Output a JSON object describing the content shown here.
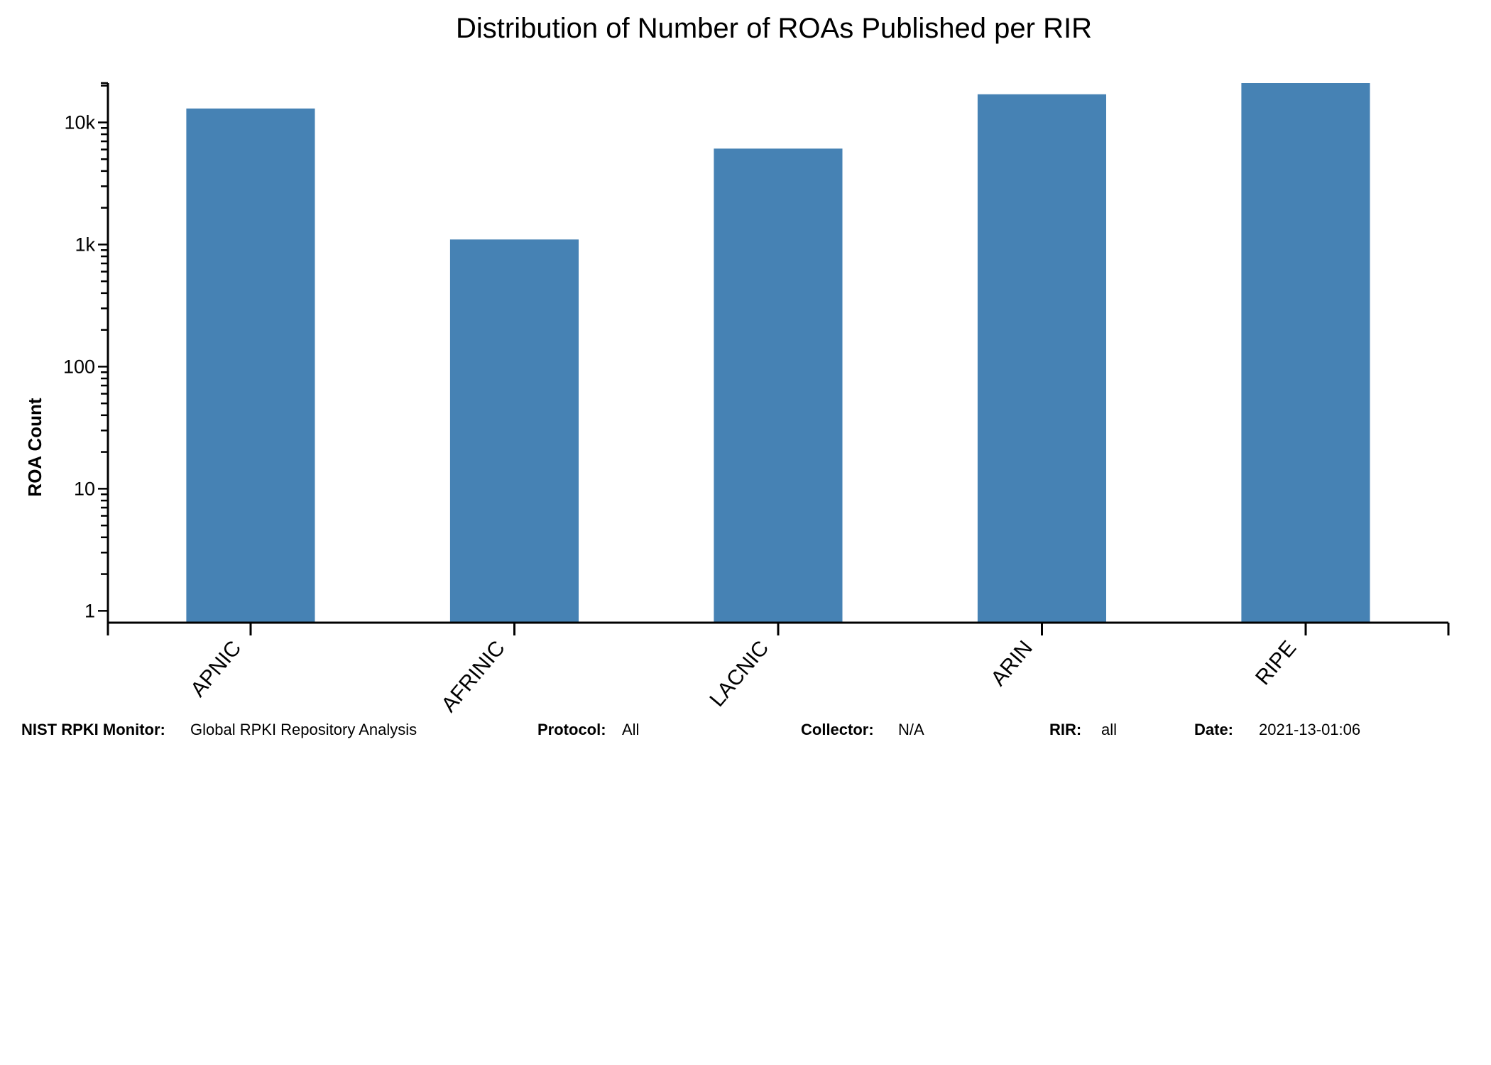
{
  "chart_data": {
    "type": "bar",
    "title": "Distribution of Number of ROAs Published per RIR",
    "xlabel": "",
    "ylabel": "ROA Count",
    "y_scale": "log",
    "ylim": [
      0.8,
      21000
    ],
    "y_ticks": [
      1,
      10,
      100,
      1000,
      10000
    ],
    "y_tick_labels": [
      "1",
      "10",
      "100",
      "1k",
      "10k"
    ],
    "categories": [
      "APNIC",
      "AFRINIC",
      "LACNIC",
      "ARIN",
      "RIPE"
    ],
    "values": [
      13000,
      1100,
      6100,
      17000,
      21000
    ],
    "grid": false,
    "legend": "none",
    "bar_color": "#4682b4"
  },
  "footer": {
    "monitor_label": "NIST RPKI Monitor:",
    "monitor_value": "Global RPKI Repository Analysis",
    "protocol_label": "Protocol:",
    "protocol_value": "All",
    "collector_label": "Collector:",
    "collector_value": "N/A",
    "rir_label": "RIR:",
    "rir_value": "all",
    "date_label": "Date:",
    "date_value": "2021-13-01:06"
  }
}
